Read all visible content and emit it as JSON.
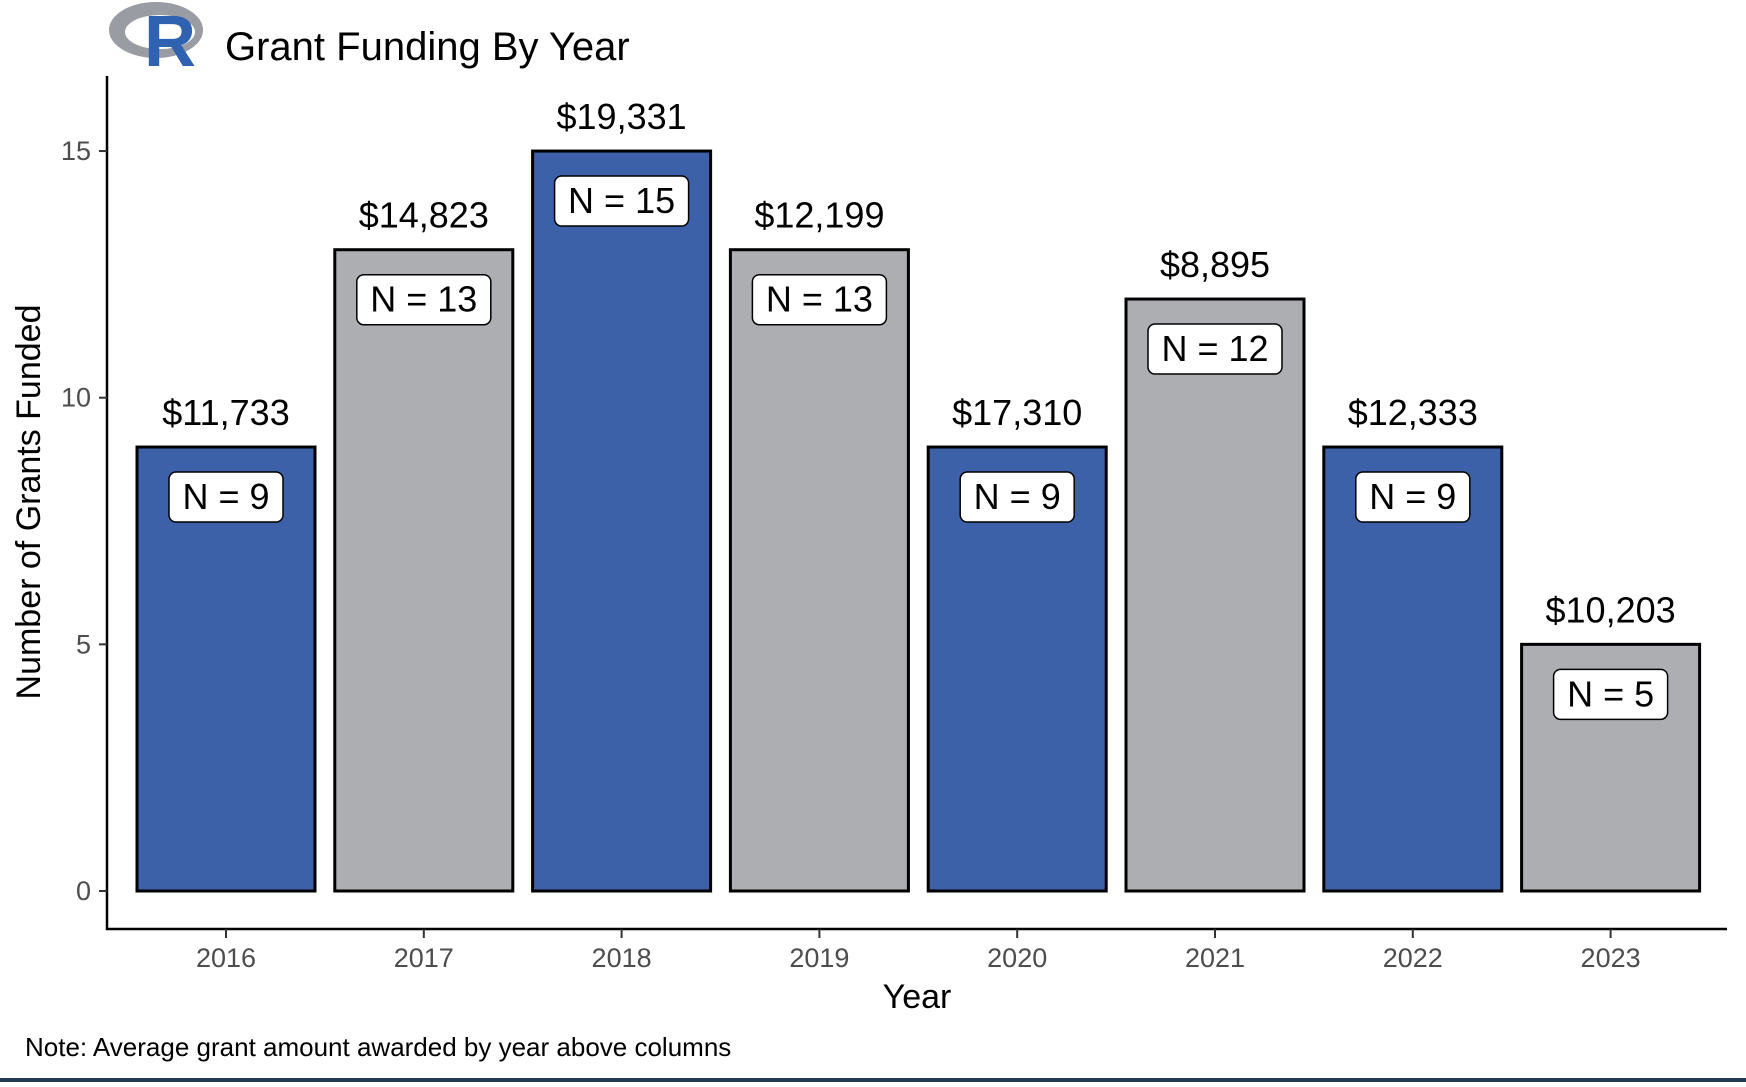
{
  "chart_data": {
    "type": "bar",
    "title": "Grant Funding By Year",
    "xlabel": "Year",
    "ylabel": "Number of Grants Funded",
    "note": "Note: Average grant amount awarded by year above columns",
    "categories": [
      "2016",
      "2017",
      "2018",
      "2019",
      "2020",
      "2021",
      "2022",
      "2023"
    ],
    "values": [
      9,
      13,
      15,
      13,
      9,
      12,
      9,
      5
    ],
    "amount_labels": [
      "$11,733",
      "$14,823",
      "$19,331",
      "$12,199",
      "$17,310",
      "$8,895",
      "$12,333",
      "$10,203"
    ],
    "count_labels": [
      "N = 9",
      "N = 13",
      "N = 15",
      "N = 13",
      "N = 9",
      "N = 12",
      "N = 9",
      "N = 5"
    ],
    "bar_colors": [
      "#3c61a8",
      "#adaeb2",
      "#3c61a8",
      "#adaeb2",
      "#3c61a8",
      "#adaeb2",
      "#3c61a8",
      "#adaeb2"
    ],
    "ylim": [
      0,
      16.5
    ],
    "yticks": [
      0,
      5,
      10,
      15
    ],
    "grid": false,
    "legend": "none"
  },
  "logo": {
    "letter": "R",
    "ring_color": "#9a9ca3",
    "letter_color": "#2f62b0"
  }
}
